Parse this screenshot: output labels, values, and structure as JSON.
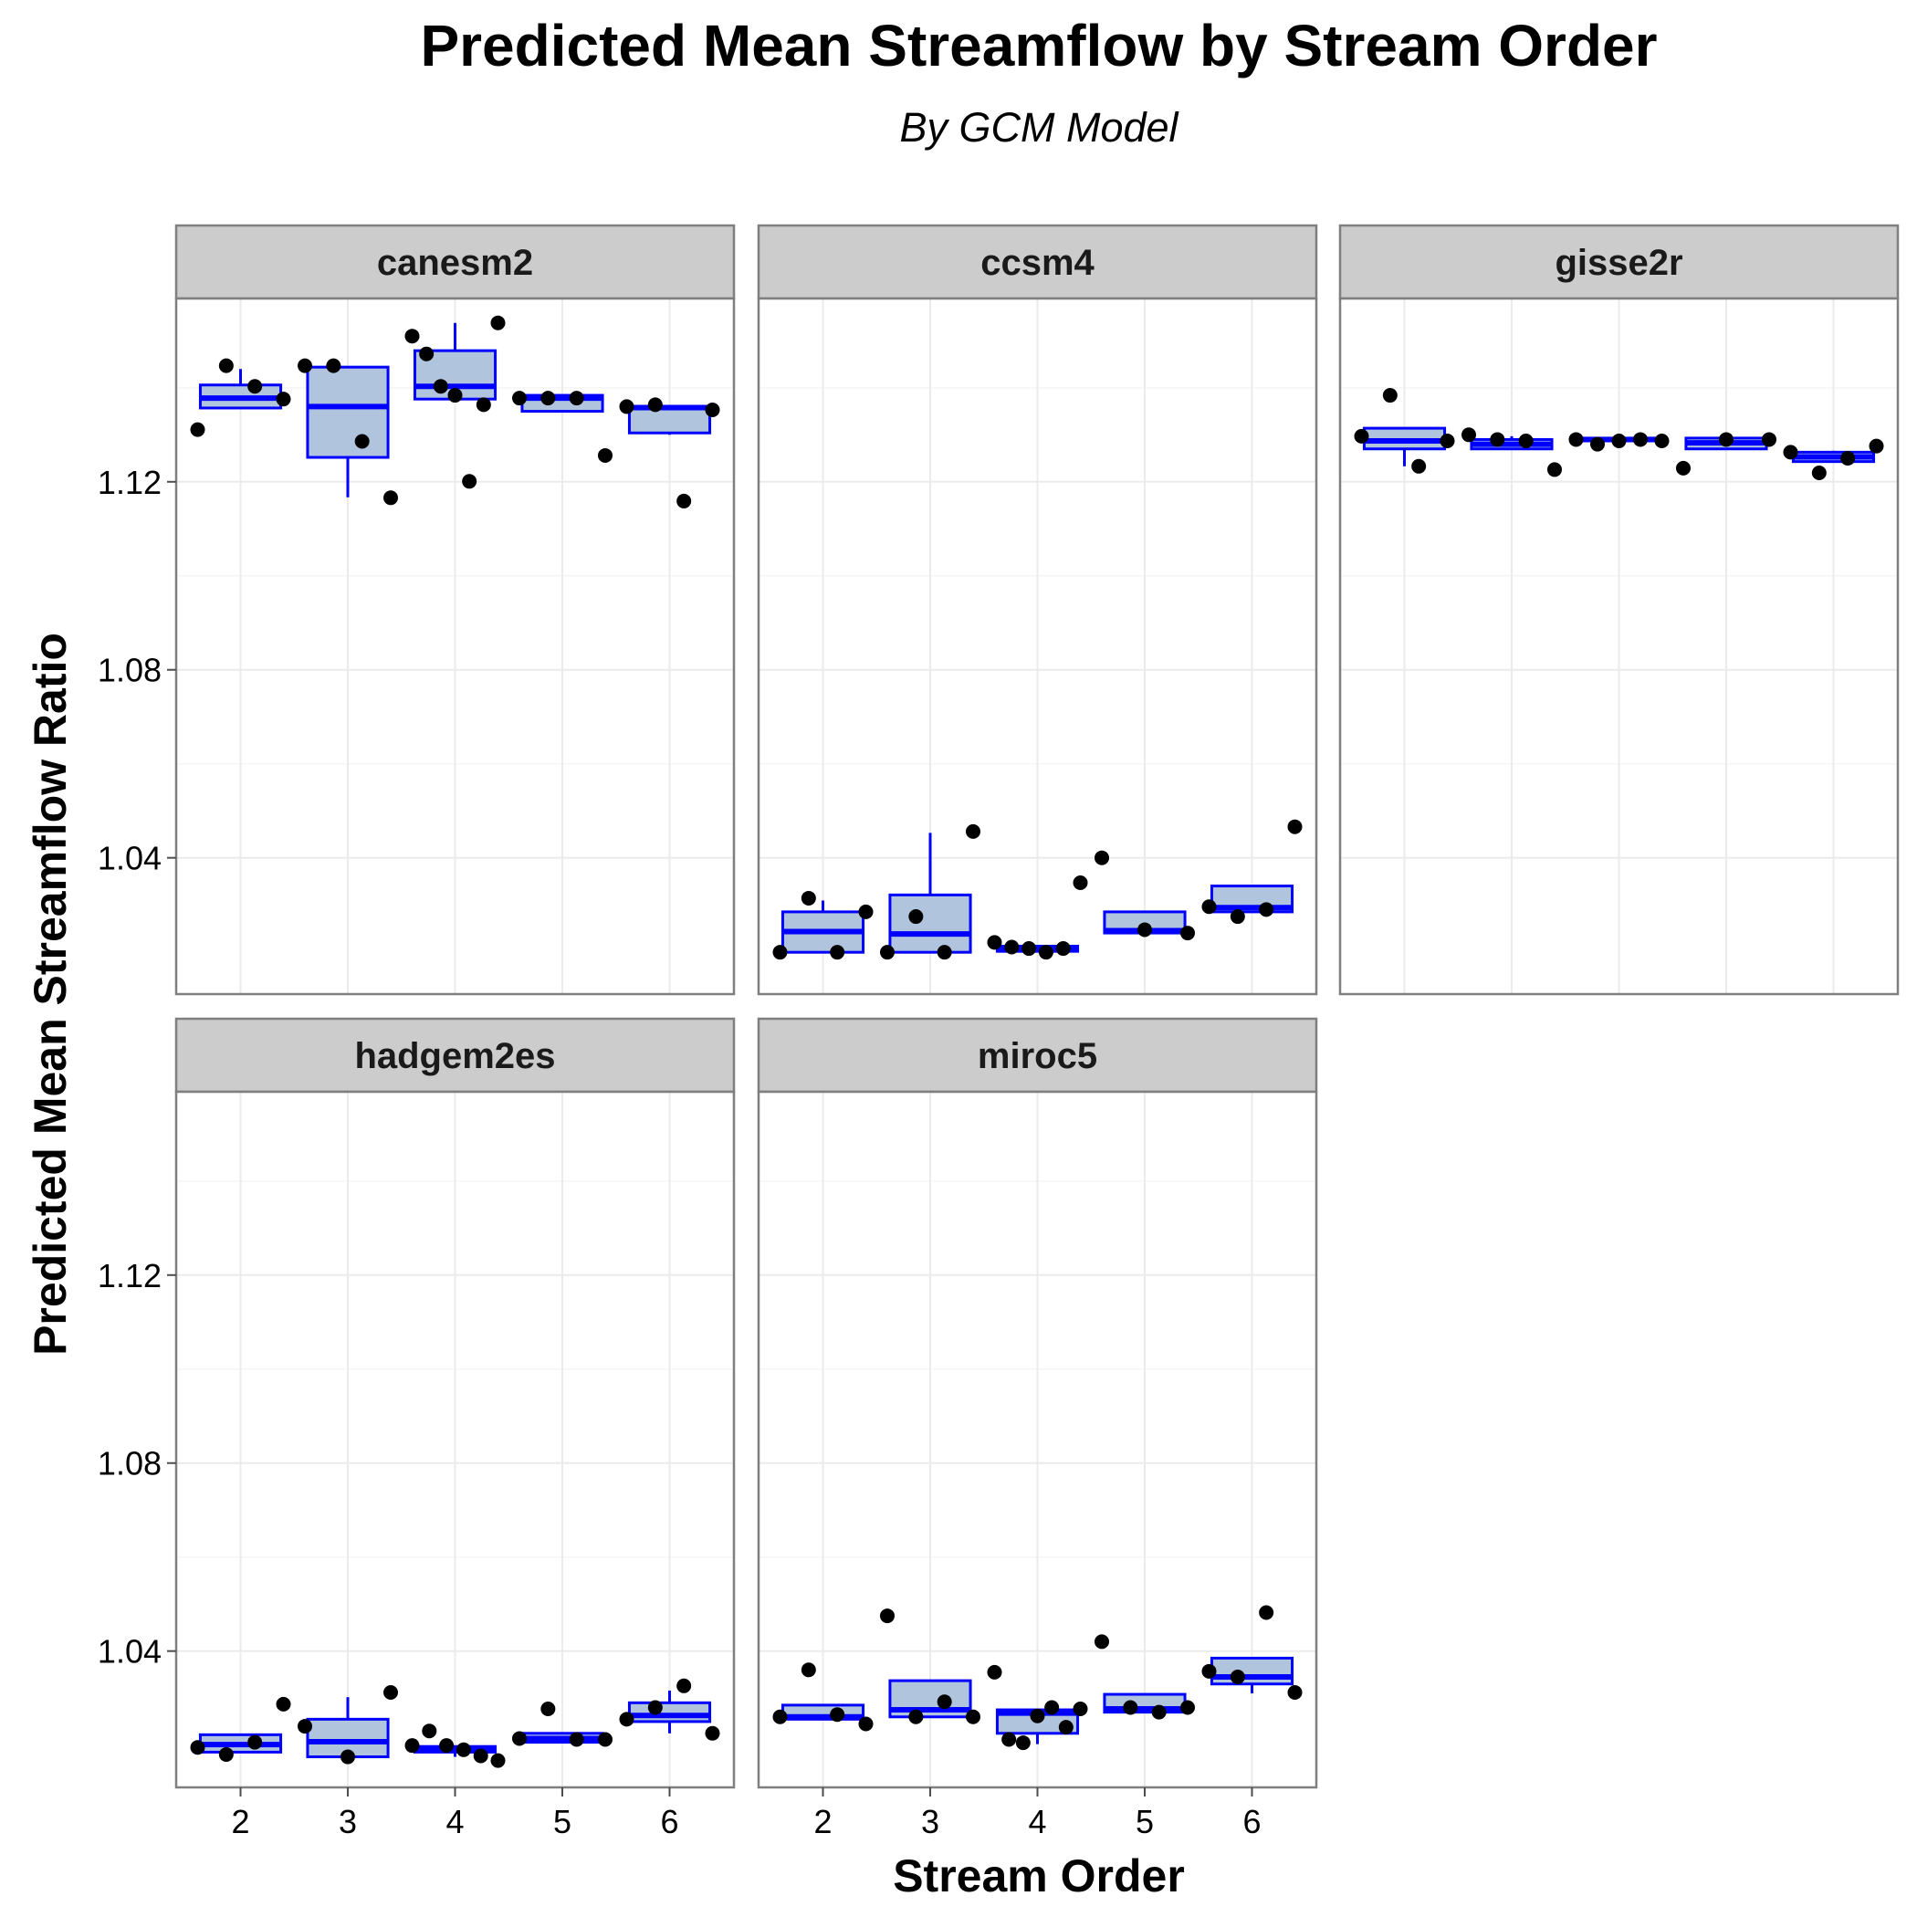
{
  "chart_data": {
    "type": "box",
    "title": "Predicted Mean Streamflow by Stream Order",
    "subtitle": "By GCM Model",
    "xlabel": "Stream Order",
    "ylabel": "Predicted Mean Streamflow Ratio",
    "categories": [
      "2",
      "3",
      "4",
      "5",
      "6"
    ],
    "y_ticks": [
      "1.04",
      "1.08",
      "1.12"
    ],
    "y_tick_values": [
      1.04,
      1.08,
      1.12
    ],
    "ylim": [
      1.011,
      1.159
    ],
    "grid": true,
    "colors": {
      "box_fill": "#b0c4de",
      "box_line": "#0000ff",
      "point": "#000000",
      "strip": "#cccccc"
    },
    "facets": [
      {
        "name": "canesm2",
        "boxes": [
          {
            "category": "2",
            "lower": 1.1357,
            "q1": 1.1357,
            "median": 1.1378,
            "q3": 1.1406,
            "upper": 1.144,
            "points": [
              1.1311,
              1.1447,
              1.1403,
              1.1376
            ]
          },
          {
            "category": "3",
            "lower": 1.1167,
            "q1": 1.1252,
            "median": 1.136,
            "q3": 1.1444,
            "upper": 1.1444,
            "points": [
              1.1447,
              1.1447,
              1.1286,
              1.1166
            ]
          },
          {
            "category": "4",
            "lower": 1.1376,
            "q1": 1.1376,
            "median": 1.1403,
            "q3": 1.1479,
            "upper": 1.1538,
            "points": [
              1.151,
              1.1472,
              1.1403,
              1.1384,
              1.1201,
              1.1364,
              1.1538
            ]
          },
          {
            "category": "5",
            "lower": 1.135,
            "q1": 1.135,
            "median": 1.1378,
            "q3": 1.1384,
            "upper": 1.1384,
            "points": [
              1.1378,
              1.1378,
              1.1378,
              1.1256
            ]
          },
          {
            "category": "6",
            "lower": 1.13,
            "q1": 1.1304,
            "median": 1.1358,
            "q3": 1.136,
            "upper": 1.136,
            "points": [
              1.136,
              1.1364,
              1.1159,
              1.1353
            ]
          }
        ]
      },
      {
        "name": "ccsm4",
        "boxes": [
          {
            "category": "2",
            "lower": 1.0199,
            "q1": 1.0199,
            "median": 1.0243,
            "q3": 1.0285,
            "upper": 1.0309,
            "points": [
              1.0199,
              1.0314,
              1.0199,
              1.0285
            ]
          },
          {
            "category": "3",
            "lower": 1.0199,
            "q1": 1.0199,
            "median": 1.0238,
            "q3": 1.0321,
            "upper": 1.0453,
            "points": [
              1.0199,
              1.0275,
              1.0199,
              1.0456
            ]
          },
          {
            "category": "4",
            "lower": 1.0201,
            "q1": 1.0201,
            "median": 1.0207,
            "q3": 1.0212,
            "upper": 1.0212,
            "points": [
              1.022,
              1.021,
              1.0207,
              1.0199,
              1.0207,
              1.0347
            ]
          },
          {
            "category": "5",
            "lower": 1.024,
            "q1": 1.024,
            "median": 1.0245,
            "q3": 1.0285,
            "upper": 1.0285,
            "points": [
              1.04,
              1.0247,
              1.024
            ]
          },
          {
            "category": "6",
            "lower": 1.0285,
            "q1": 1.0285,
            "median": 1.0294,
            "q3": 1.034,
            "upper": 1.034,
            "points": [
              1.0296,
              1.0275,
              1.029,
              1.0466
            ]
          }
        ]
      },
      {
        "name": "gisse2r",
        "boxes": [
          {
            "category": "2",
            "lower": 1.1233,
            "q1": 1.127,
            "median": 1.1287,
            "q3": 1.1314,
            "upper": 1.1314,
            "points": [
              1.1297,
              1.1384,
              1.1233,
              1.1287
            ]
          },
          {
            "category": "3",
            "lower": 1.127,
            "q1": 1.127,
            "median": 1.128,
            "q3": 1.129,
            "upper": 1.1297,
            "points": [
              1.13,
              1.129,
              1.1287,
              1.1226
            ]
          },
          {
            "category": "4",
            "lower": 1.1287,
            "q1": 1.1287,
            "median": 1.129,
            "q3": 1.1293,
            "upper": 1.1293,
            "points": [
              1.129,
              1.128,
              1.1287,
              1.129,
              1.1287
            ]
          },
          {
            "category": "5",
            "lower": 1.127,
            "q1": 1.127,
            "median": 1.1283,
            "q3": 1.1293,
            "upper": 1.1293,
            "points": [
              1.1229,
              1.129,
              1.129
            ]
          },
          {
            "category": "6",
            "lower": 1.1243,
            "q1": 1.1243,
            "median": 1.1253,
            "q3": 1.1263,
            "upper": 1.1266,
            "points": [
              1.1263,
              1.1219,
              1.125,
              1.1276
            ]
          }
        ]
      },
      {
        "name": "hadgem2es",
        "boxes": [
          {
            "category": "2",
            "lower": 1.0185,
            "q1": 1.0185,
            "median": 1.0201,
            "q3": 1.0222,
            "upper": 1.0222,
            "points": [
              1.0195,
              1.018,
              1.0206,
              1.0287
            ]
          },
          {
            "category": "3",
            "lower": 1.0175,
            "q1": 1.0175,
            "median": 1.0207,
            "q3": 1.0255,
            "upper": 1.0302,
            "points": [
              1.024,
              1.0175,
              1.0312
            ]
          },
          {
            "category": "4",
            "lower": 1.0175,
            "q1": 1.0185,
            "median": 1.019,
            "q3": 1.0197,
            "upper": 1.0197,
            "points": [
              1.0199,
              1.023,
              1.0199,
              1.019,
              1.0177,
              1.0167
            ]
          },
          {
            "category": "5",
            "lower": 1.0206,
            "q1": 1.0206,
            "median": 1.0214,
            "q3": 1.0225,
            "upper": 1.0225,
            "points": [
              1.0214,
              1.0277,
              1.0212,
              1.0212
            ]
          },
          {
            "category": "6",
            "lower": 1.0225,
            "q1": 1.025,
            "median": 1.0263,
            "q3": 1.029,
            "upper": 1.0316,
            "points": [
              1.0255,
              1.028,
              1.0326,
              1.0225
            ]
          }
        ]
      },
      {
        "name": "miroc5",
        "boxes": [
          {
            "category": "2",
            "lower": 1.0255,
            "q1": 1.0255,
            "median": 1.026,
            "q3": 1.0285,
            "upper": 1.0285,
            "points": [
              1.026,
              1.036,
              1.0265,
              1.0245
            ]
          },
          {
            "category": "3",
            "lower": 1.026,
            "q1": 1.026,
            "median": 1.0275,
            "q3": 1.0337,
            "upper": 1.0337,
            "points": [
              1.0475,
              1.026,
              1.0292,
              1.026
            ]
          },
          {
            "category": "4",
            "lower": 1.0202,
            "q1": 1.0225,
            "median": 1.0268,
            "q3": 1.0275,
            "upper": 1.0275,
            "points": [
              1.0355,
              1.0212,
              1.0205,
              1.0262,
              1.028,
              1.0238,
              1.0277
            ]
          },
          {
            "category": "5",
            "lower": 1.027,
            "q1": 1.027,
            "median": 1.0277,
            "q3": 1.0308,
            "upper": 1.0308,
            "points": [
              1.042,
              1.028,
              1.027,
              1.028
            ]
          },
          {
            "category": "6",
            "lower": 1.031,
            "q1": 1.033,
            "median": 1.0345,
            "q3": 1.0385,
            "upper": 1.0385,
            "points": [
              1.0357,
              1.0345,
              1.0482,
              1.0312
            ]
          }
        ]
      }
    ]
  }
}
